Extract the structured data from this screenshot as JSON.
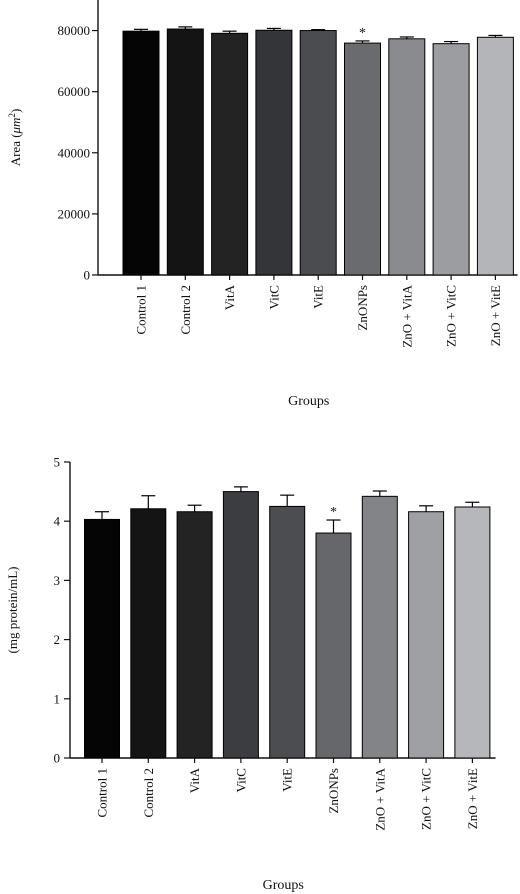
{
  "chart_data": [
    {
      "type": "bar",
      "xlabel": "Groups",
      "ylabel": "Area (μm²)",
      "ylabel_main": "Area (",
      "ylabel_unit": "μm",
      "ylabel_sup": "2",
      "ylabel_close": ")",
      "ylim": [
        0,
        90000
      ],
      "yticks": [
        "0",
        "20000",
        "40000",
        "60000",
        "80000"
      ],
      "ytick_values": [
        0,
        20000,
        40000,
        60000,
        80000
      ],
      "categories": [
        "Control 1",
        "Control 2",
        "VitA",
        "VitC",
        "VitE",
        "ZnONPs",
        "ZnO + VitA",
        "ZnO + VitC",
        "ZnO + VitE"
      ],
      "values": [
        79800,
        80500,
        79100,
        80100,
        80000,
        75900,
        77300,
        75700,
        77800
      ],
      "errors": [
        600,
        700,
        700,
        600,
        300,
        700,
        600,
        700,
        600
      ],
      "annotations": [
        "",
        "",
        "",
        "",
        "",
        "*",
        "",
        "",
        ""
      ],
      "colors": [
        "#050505",
        "#141414",
        "#232323",
        "#343538",
        "#4b4c50",
        "#6a6b6f",
        "#8a8b8f",
        "#9c9da1",
        "#b4b5b9"
      ]
    },
    {
      "type": "bar",
      "xlabel": "Groups",
      "ylabel": "(mg protein/mL)",
      "ylim": [
        0,
        5
      ],
      "yticks": [
        "0",
        "1",
        "2",
        "3",
        "4",
        "5"
      ],
      "ytick_values": [
        0,
        1,
        2,
        3,
        4,
        5
      ],
      "categories": [
        "Control 1",
        "Control 2",
        "VitA",
        "VitC",
        "VitE",
        "ZnONPs",
        "ZnO + VitA",
        "ZnO + VitC",
        "ZnO + VitE"
      ],
      "values": [
        4.03,
        4.21,
        4.16,
        4.5,
        4.25,
        3.8,
        4.42,
        4.16,
        4.24
      ],
      "errors": [
        0.13,
        0.22,
        0.11,
        0.08,
        0.19,
        0.22,
        0.09,
        0.1,
        0.08
      ],
      "annotations": [
        "",
        "",
        "",
        "",
        "",
        "*",
        "",
        "",
        ""
      ],
      "colors": [
        "#050505",
        "#141414",
        "#232323",
        "#3c3d40",
        "#4c4d51",
        "#66676b",
        "#838488",
        "#9fa0a4",
        "#b6b7bb"
      ]
    }
  ]
}
